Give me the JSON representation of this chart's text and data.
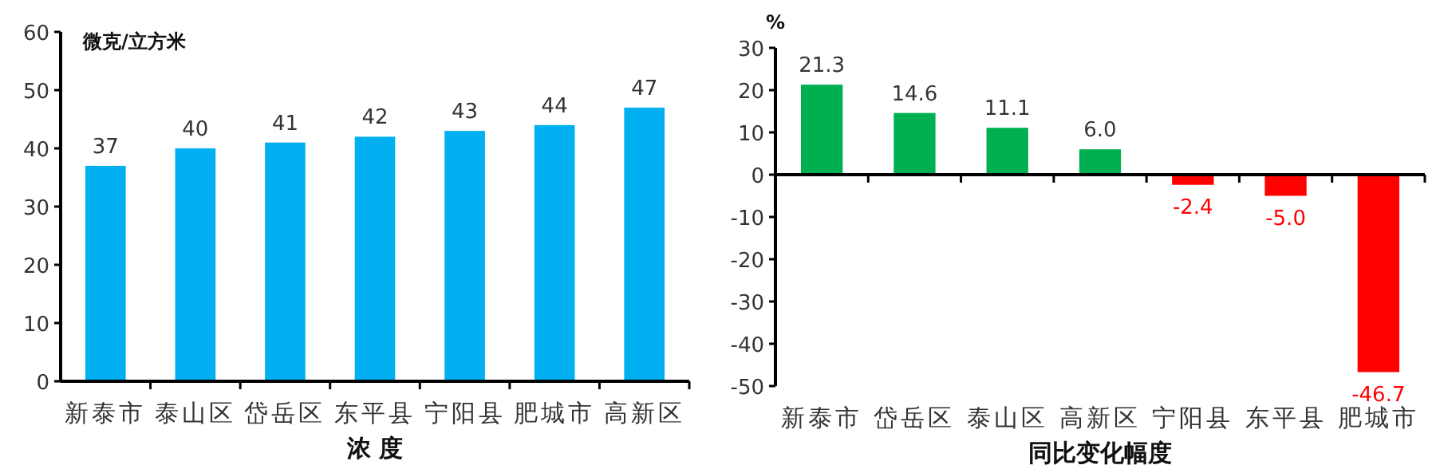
{
  "chart_data": [
    {
      "type": "bar",
      "ylabel": "微克/立方米",
      "xlabel": "浓 度",
      "categories": [
        "新泰市",
        "泰山区",
        "岱岳区",
        "东平县",
        "宁阳县",
        "肥城市",
        "高新区"
      ],
      "values": [
        37,
        40,
        41,
        42,
        43,
        44,
        47
      ],
      "color": "#00b0f0",
      "ylim": [
        0,
        60
      ],
      "yticks": [
        0,
        10,
        20,
        30,
        40,
        50,
        60
      ],
      "data_labels": true
    },
    {
      "type": "bar",
      "ylabel": "%",
      "xlabel": "同比变化幅度",
      "categories": [
        "新泰市",
        "岱岳区",
        "泰山区",
        "高新区",
        "宁阳县",
        "东平县",
        "肥城市"
      ],
      "values": [
        21.3,
        14.6,
        11.1,
        6.0,
        -2.4,
        -5.0,
        -46.7
      ],
      "colors": [
        "#00b050",
        "#00b050",
        "#00b050",
        "#00b050",
        "#ff0000",
        "#ff0000",
        "#ff0000"
      ],
      "value_labels": [
        "21.3",
        "14.6",
        "11.1",
        "6.0",
        "-2.4",
        "-5.0",
        "-46.7"
      ],
      "ylim": [
        -50,
        30
      ],
      "yticks": [
        -50,
        -40,
        -30,
        -20,
        -10,
        0,
        10,
        20,
        30
      ]
    }
  ]
}
